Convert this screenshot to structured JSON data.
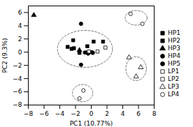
{
  "chart_data": {
    "type": "scatter",
    "title": "",
    "xlabel": "PC1 (10.77%)",
    "ylabel": "PC2 (9.3%)",
    "xlim": [
      -8,
      8
    ],
    "ylim": [
      -8,
      7
    ],
    "xticks": [
      -8,
      -6,
      -4,
      -2,
      0,
      2,
      4,
      6,
      8
    ],
    "yticks": [
      -8,
      -6,
      -4,
      -2,
      0,
      2,
      4,
      6
    ],
    "series": [
      {
        "name": "HP1",
        "marker": "square",
        "color": "black",
        "x": [
          -3.0,
          -2.3,
          -2.2,
          -0.5,
          0.3,
          1.5
        ],
        "values": [
          0.8,
          1.8,
          0.6,
          0.9,
          1.6,
          1.6
        ]
      },
      {
        "name": "HP2",
        "marker": "square",
        "color": "black",
        "x": [
          -2.5,
          -1.5,
          -0.5,
          0.0
        ],
        "values": [
          0.5,
          -0.1,
          -0.05,
          0.0
        ]
      },
      {
        "name": "HP3",
        "marker": "triangle",
        "color": "black",
        "x": [
          -7.3,
          -1.5
        ],
        "values": [
          5.6,
          0.3
        ]
      },
      {
        "name": "HP4",
        "marker": "circle",
        "color": "black",
        "x": [
          -1.3,
          -1.3,
          -0.8
        ],
        "values": [
          4.3,
          -1.9,
          -0.05
        ]
      },
      {
        "name": "HP5",
        "marker": "circle",
        "color": "black",
        "x": [
          -0.4,
          0.2
        ],
        "values": [
          -0.2,
          -0.1
        ]
      },
      {
        "name": "LP1",
        "marker": "square-open",
        "color": "black",
        "x": [
          1.8,
          0.8
        ],
        "values": [
          0.7,
          0.1
        ]
      },
      {
        "name": "LP2",
        "marker": "square-open",
        "color": "black",
        "x": [
          -0.3
        ],
        "values": [
          0.1
        ]
      },
      {
        "name": "LP3",
        "marker": "triangle-open",
        "color": "black",
        "x": [
          4.8,
          6.3,
          5.7
        ],
        "values": [
          -0.8,
          -2.3,
          -3.7
        ]
      },
      {
        "name": "LP4",
        "marker": "circle-open",
        "color": "black",
        "x": [
          5.0,
          6.5,
          -1.0,
          -1.5
        ],
        "values": [
          5.8,
          4.3,
          -5.8,
          -7.0
        ]
      }
    ],
    "ellipses": [
      {
        "cx": -0.8,
        "cy": 0.5,
        "rx": 3.5,
        "ry": 2.8,
        "angle": 0
      },
      {
        "cx": 5.7,
        "cy": 5.2,
        "rx": 1.4,
        "ry": 1.1,
        "angle": 0
      },
      {
        "cx": 5.7,
        "cy": -2.5,
        "rx": 1.3,
        "ry": 1.8,
        "angle": 0
      },
      {
        "cx": -1.1,
        "cy": -6.2,
        "rx": 1.3,
        "ry": 1.3,
        "angle": 0
      }
    ],
    "legend": "right"
  }
}
